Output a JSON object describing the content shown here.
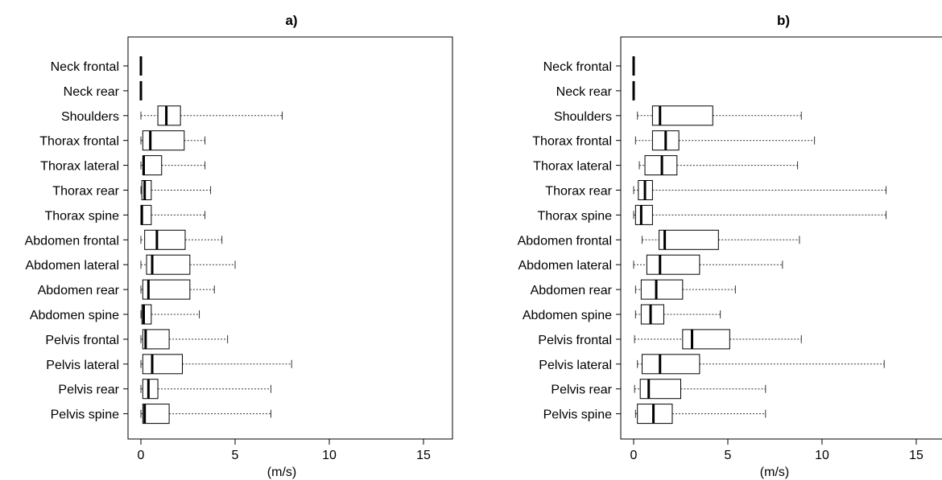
{
  "chart_data": [
    {
      "type": "boxplot",
      "title": "a)",
      "xlabel": "(m/s)",
      "xlim": [
        -0.7,
        16.5
      ],
      "xticks": [
        0,
        5,
        10,
        15
      ],
      "xtick_labels": [
        "0",
        "5",
        "10",
        "15"
      ],
      "categories": [
        "Neck frontal",
        "Neck rear",
        "Shoulders",
        "Thorax frontal",
        "Thorax lateral",
        "Thorax rear",
        "Thorax spine",
        "Abdomen frontal",
        "Abdomen lateral",
        "Abdomen rear",
        "Abdomen spine",
        "Pelvis frontal",
        "Pelvis lateral",
        "Pelvis rear",
        "Pelvis spine"
      ],
      "boxes": [
        {
          "min": 0,
          "q1": 0,
          "median": 0,
          "q3": 0,
          "max": 0
        },
        {
          "min": 0,
          "q1": 0,
          "median": 0,
          "q3": 0,
          "max": 0
        },
        {
          "min": 0,
          "q1": 0.9,
          "median": 1.35,
          "q3": 2.1,
          "max": 7.5
        },
        {
          "min": 0,
          "q1": 0.1,
          "median": 0.5,
          "q3": 2.3,
          "max": 3.4
        },
        {
          "min": 0,
          "q1": 0.1,
          "median": 0.15,
          "q3": 1.1,
          "max": 3.4
        },
        {
          "min": 0,
          "q1": 0.05,
          "median": 0.2,
          "q3": 0.55,
          "max": 3.7
        },
        {
          "min": 0,
          "q1": 0.0,
          "median": 0.05,
          "q3": 0.55,
          "max": 3.4
        },
        {
          "min": 0,
          "q1": 0.2,
          "median": 0.85,
          "q3": 2.35,
          "max": 4.3
        },
        {
          "min": 0,
          "q1": 0.3,
          "median": 0.6,
          "q3": 2.6,
          "max": 5.0
        },
        {
          "min": 0,
          "q1": 0.1,
          "median": 0.4,
          "q3": 2.6,
          "max": 3.9
        },
        {
          "min": 0,
          "q1": 0.05,
          "median": 0.15,
          "q3": 0.55,
          "max": 3.1
        },
        {
          "min": 0,
          "q1": 0.1,
          "median": 0.25,
          "q3": 1.5,
          "max": 4.6
        },
        {
          "min": 0,
          "q1": 0.1,
          "median": 0.6,
          "q3": 2.2,
          "max": 8.0
        },
        {
          "min": 0,
          "q1": 0.1,
          "median": 0.4,
          "q3": 0.9,
          "max": 6.9
        },
        {
          "min": 0,
          "q1": 0.1,
          "median": 0.2,
          "q3": 1.5,
          "max": 6.9
        }
      ]
    },
    {
      "type": "boxplot",
      "title": "b)",
      "xlabel": "(m/s)",
      "xlim": [
        -0.7,
        16.5
      ],
      "xticks": [
        0,
        5,
        10,
        15
      ],
      "xtick_labels": [
        "0",
        "5",
        "10",
        "15"
      ],
      "categories": [
        "Neck frontal",
        "Neck rear",
        "Shoulders",
        "Thorax frontal",
        "Thorax lateral",
        "Thorax rear",
        "Thorax spine",
        "Abdomen frontal",
        "Abdomen lateral",
        "Abdomen rear",
        "Abdomen spine",
        "Pelvis frontal",
        "Pelvis lateral",
        "Pelvis rear",
        "Pelvis spine"
      ],
      "boxes": [
        {
          "min": 0,
          "q1": 0,
          "median": 0,
          "q3": 0,
          "max": 0
        },
        {
          "min": 0,
          "q1": 0,
          "median": 0,
          "q3": 0,
          "max": 0
        },
        {
          "min": 0.2,
          "q1": 1.0,
          "median": 1.4,
          "q3": 4.2,
          "max": 8.9
        },
        {
          "min": 0.1,
          "q1": 1.0,
          "median": 1.7,
          "q3": 2.4,
          "max": 9.6
        },
        {
          "min": 0.3,
          "q1": 0.6,
          "median": 1.5,
          "q3": 2.3,
          "max": 8.7
        },
        {
          "min": 0.0,
          "q1": 0.25,
          "median": 0.6,
          "q3": 1.0,
          "max": 13.4
        },
        {
          "min": 0.0,
          "q1": 0.1,
          "median": 0.4,
          "q3": 1.0,
          "max": 13.4
        },
        {
          "min": 0.45,
          "q1": 1.35,
          "median": 1.65,
          "q3": 4.5,
          "max": 8.8
        },
        {
          "min": 0.0,
          "q1": 0.7,
          "median": 1.4,
          "q3": 3.5,
          "max": 7.9
        },
        {
          "min": 0.1,
          "q1": 0.4,
          "median": 1.2,
          "q3": 2.6,
          "max": 5.4
        },
        {
          "min": 0.1,
          "q1": 0.4,
          "median": 0.9,
          "q3": 1.6,
          "max": 4.6
        },
        {
          "min": 0.05,
          "q1": 2.6,
          "median": 3.1,
          "q3": 5.1,
          "max": 8.9
        },
        {
          "min": 0.2,
          "q1": 0.45,
          "median": 1.4,
          "q3": 3.5,
          "max": 13.3
        },
        {
          "min": 0.05,
          "q1": 0.35,
          "median": 0.8,
          "q3": 2.5,
          "max": 7.0
        },
        {
          "min": 0.1,
          "q1": 0.2,
          "median": 1.05,
          "q3": 2.05,
          "max": 7.0
        }
      ]
    }
  ]
}
